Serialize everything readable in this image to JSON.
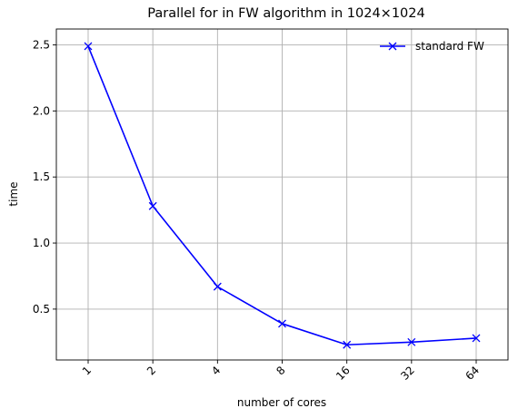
{
  "chart_data": {
    "type": "line",
    "title": "Parallel for in FW algorithm in 1024×1024",
    "xlabel": "number of cores",
    "ylabel": "time",
    "categories": [
      "1",
      "2",
      "4",
      "8",
      "16",
      "32",
      "64"
    ],
    "series": [
      {
        "name": "standard FW",
        "values": [
          2.49,
          1.28,
          0.67,
          0.39,
          0.23,
          0.25,
          0.28
        ],
        "color": "#0000ff",
        "marker": "x"
      }
    ],
    "yticks": [
      "0.5",
      "1.0",
      "1.5",
      "2.0",
      "2.5"
    ],
    "ytick_values": [
      0.5,
      1.0,
      1.5,
      2.0,
      2.5
    ],
    "ylim": [
      0.115,
      2.62
    ],
    "grid": true,
    "legend": "top-right",
    "xtick_rotation": 45
  }
}
